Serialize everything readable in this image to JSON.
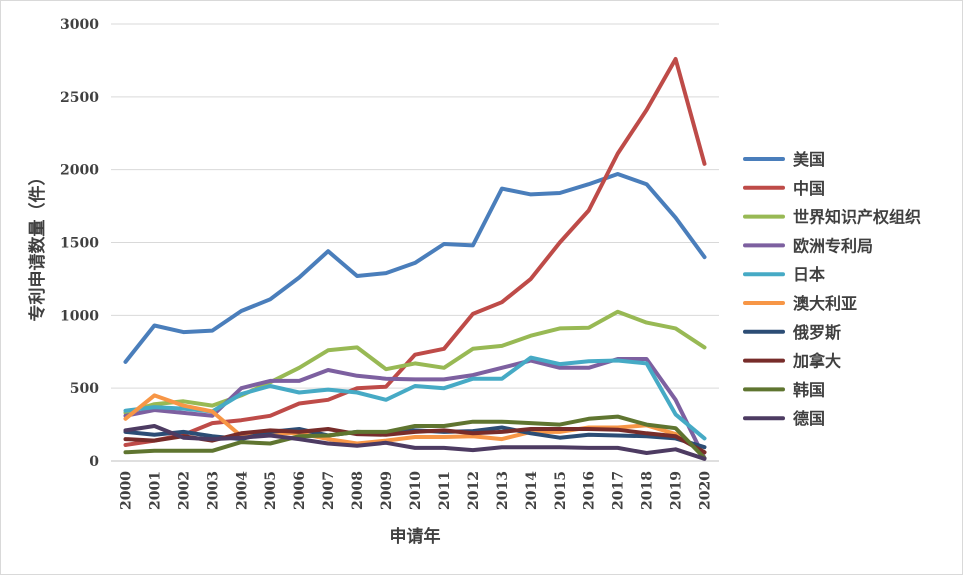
{
  "chart_data": {
    "type": "line",
    "title": "",
    "xlabel": "申请年",
    "ylabel": "专利申请数量（件）",
    "ylim": [
      0,
      3000
    ],
    "yticks": [
      0,
      500,
      1000,
      1500,
      2000,
      2500,
      3000
    ],
    "grid": true,
    "legend_position": "right",
    "x": [
      "2000",
      "2001",
      "2002",
      "2003",
      "2004",
      "2005",
      "2006",
      "2007",
      "2008",
      "2009",
      "2010",
      "2011",
      "2012",
      "2013",
      "2014",
      "2015",
      "2016",
      "2017",
      "2018",
      "2019",
      "2020"
    ],
    "series": [
      {
        "name": "美国",
        "color": "#4a7ebb",
        "values": [
          680,
          930,
          885,
          895,
          1030,
          1110,
          1260,
          1440,
          1270,
          1290,
          1360,
          1490,
          1480,
          1870,
          1830,
          1840,
          1900,
          1970,
          1900,
          1670,
          1400
        ]
      },
      {
        "name": "中国",
        "color": "#be4b48",
        "values": [
          110,
          140,
          180,
          260,
          280,
          310,
          395,
          420,
          500,
          510,
          730,
          770,
          1010,
          1090,
          1250,
          1500,
          1720,
          2110,
          2410,
          2760,
          2040
        ]
      },
      {
        "name": "世界知识产权组织",
        "color": "#98b954",
        "values": [
          330,
          390,
          410,
          380,
          450,
          540,
          640,
          760,
          780,
          630,
          670,
          640,
          770,
          790,
          860,
          910,
          915,
          1025,
          950,
          910,
          780
        ]
      },
      {
        "name": "欧洲专利局",
        "color": "#7d60a0",
        "values": [
          310,
          350,
          330,
          310,
          500,
          550,
          550,
          625,
          585,
          565,
          560,
          560,
          590,
          640,
          690,
          640,
          640,
          700,
          700,
          420,
          20
        ]
      },
      {
        "name": "日本",
        "color": "#46aac5",
        "values": [
          345,
          370,
          360,
          340,
          460,
          515,
          470,
          490,
          470,
          420,
          515,
          500,
          565,
          565,
          710,
          665,
          685,
          690,
          670,
          320,
          155
        ]
      },
      {
        "name": "澳大利亚",
        "color": "#f79646",
        "values": [
          290,
          450,
          380,
          340,
          170,
          190,
          190,
          150,
          120,
          140,
          165,
          165,
          170,
          150,
          200,
          200,
          230,
          230,
          245,
          185,
          60
        ]
      },
      {
        "name": "俄罗斯",
        "color": "#2c4d75",
        "values": [
          200,
          180,
          200,
          170,
          150,
          200,
          220,
          175,
          200,
          195,
          210,
          200,
          205,
          230,
          190,
          160,
          180,
          175,
          170,
          155,
          95
        ]
      },
      {
        "name": "加拿大",
        "color": "#772c2a",
        "values": [
          150,
          140,
          170,
          140,
          190,
          210,
          200,
          220,
          185,
          180,
          200,
          210,
          190,
          200,
          220,
          220,
          220,
          215,
          190,
          170,
          60
        ]
      },
      {
        "name": "韩国",
        "color": "#5f7530",
        "values": [
          60,
          70,
          70,
          70,
          130,
          120,
          170,
          175,
          200,
          200,
          240,
          240,
          270,
          270,
          260,
          250,
          290,
          305,
          250,
          225,
          20
        ]
      },
      {
        "name": "德国",
        "color": "#4d3b62",
        "values": [
          210,
          240,
          160,
          150,
          160,
          175,
          150,
          120,
          105,
          125,
          90,
          90,
          75,
          95,
          95,
          95,
          90,
          90,
          55,
          80,
          15
        ]
      }
    ]
  }
}
